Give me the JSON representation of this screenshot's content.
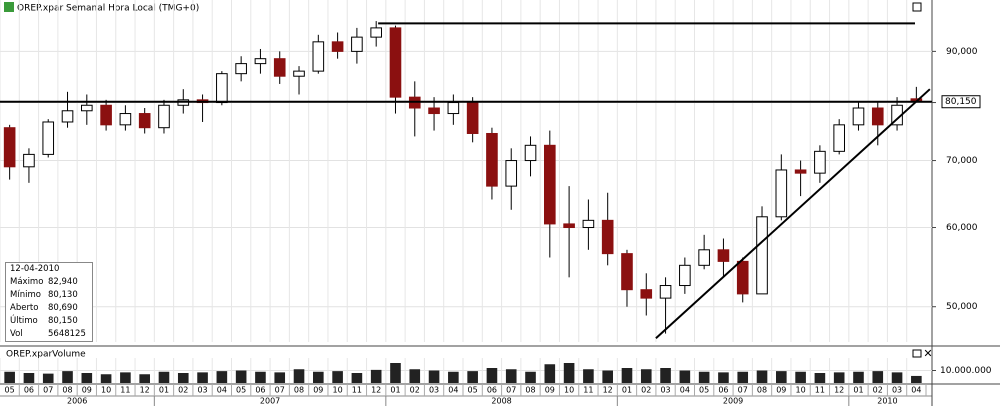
{
  "chart_data": {
    "type": "candlestick",
    "title": "OREP.xpar Semanal Hora Local (TMG+0)",
    "volume_title": "OREP.xparVolume",
    "log_scale": true,
    "grid": true,
    "up_color": "#ffffff",
    "down_color": "#8b1010",
    "categories": [
      "05",
      "06",
      "07",
      "08",
      "09",
      "10",
      "11",
      "12",
      "01",
      "02",
      "03",
      "04",
      "05",
      "06",
      "07",
      "08",
      "09",
      "10",
      "11",
      "12",
      "01",
      "02",
      "03",
      "04",
      "05",
      "06",
      "07",
      "08",
      "09",
      "10",
      "11",
      "12",
      "01",
      "02",
      "03",
      "04",
      "05",
      "06",
      "07",
      "08",
      "09",
      "10",
      "11",
      "12",
      "01",
      "02",
      "03",
      "04"
    ],
    "years": [
      "2006",
      "2007",
      "2008",
      "2009",
      "2010"
    ],
    "open": [
      75500,
      69000,
      71000,
      76500,
      78500,
      79500,
      76000,
      78000,
      75500,
      79500,
      80500,
      80000,
      85500,
      87500,
      88500,
      85000,
      86000,
      92000,
      90000,
      93000,
      95000,
      81000,
      79000,
      78000,
      80000,
      74500,
      66000,
      70000,
      72500,
      60500,
      60000,
      61000,
      56500,
      52000,
      51000,
      52500,
      55000,
      57000,
      55500,
      51500,
      61500,
      68500,
      68000,
      71500,
      76000,
      79000,
      76000,
      80690
    ],
    "high": [
      76000,
      72000,
      77000,
      82000,
      81500,
      80500,
      79500,
      79000,
      80500,
      82500,
      81500,
      86000,
      89000,
      90500,
      90000,
      87000,
      93500,
      94000,
      95000,
      96500,
      95500,
      84000,
      81000,
      81500,
      81000,
      75500,
      72000,
      74000,
      75000,
      66000,
      64000,
      65000,
      57000,
      54000,
      53500,
      56000,
      59000,
      58500,
      56000,
      63000,
      71000,
      70000,
      72500,
      77000,
      80000,
      80000,
      81000,
      82940
    ],
    "low": [
      67000,
      66500,
      70500,
      75500,
      76000,
      75000,
      75000,
      74500,
      74500,
      78000,
      76500,
      79500,
      84000,
      85500,
      83500,
      81500,
      85500,
      88500,
      87500,
      91000,
      78000,
      74000,
      75000,
      76000,
      73000,
      64000,
      62500,
      67500,
      56000,
      53500,
      57000,
      55000,
      50000,
      49000,
      47000,
      51500,
      54500,
      53500,
      50500,
      51500,
      61000,
      64500,
      66500,
      71000,
      75000,
      72500,
      75000,
      80130
    ],
    "close": [
      69000,
      71000,
      76500,
      78500,
      79500,
      76000,
      78000,
      75500,
      79500,
      80500,
      80000,
      85500,
      87500,
      88500,
      85000,
      86000,
      92000,
      90000,
      93000,
      95000,
      81000,
      79000,
      78000,
      80000,
      74500,
      66000,
      70000,
      72500,
      60500,
      60000,
      61000,
      56500,
      52000,
      51000,
      52500,
      55000,
      57000,
      55500,
      51500,
      61500,
      68500,
      68000,
      71500,
      76000,
      79000,
      76000,
      79500,
      80150
    ],
    "volume": [
      9000000,
      8000000,
      7500000,
      9500000,
      8000000,
      7000000,
      8500000,
      7000000,
      9000000,
      8000000,
      8500000,
      9500000,
      10000000,
      9000000,
      8500000,
      11000000,
      9000000,
      9500000,
      8000000,
      10500000,
      16000000,
      11000000,
      10000000,
      9000000,
      9500000,
      12000000,
      11000000,
      9000000,
      15000000,
      16000000,
      11000000,
      10000000,
      12000000,
      11000000,
      12000000,
      10000000,
      9000000,
      8500000,
      9000000,
      10000000,
      9500000,
      9000000,
      8000000,
      8500000,
      9000000,
      9500000,
      8500000,
      5648125
    ],
    "ylim": [
      46100,
      101300
    ],
    "yticks": [
      {
        "value": 50000,
        "label": "50,000"
      },
      {
        "value": 60000,
        "label": "60,000"
      },
      {
        "value": 70000,
        "label": "70,000"
      },
      {
        "value": 80000,
        "label": "80,000"
      },
      {
        "value": 90000,
        "label": "90,000"
      }
    ],
    "vol_ylim": [
      0,
      20000000
    ],
    "vol_yticks": [
      {
        "value": 10000000,
        "label": "10.000.000"
      }
    ],
    "last_price": {
      "value": 80150,
      "label": "80,150"
    },
    "resistance": 96000,
    "resistance_from": 19.6,
    "trendline": [
      [
        34.0,
        46500
      ],
      [
        48.2,
        82500
      ]
    ],
    "info": {
      "date": "12-04-2010",
      "rows": [
        [
          "Máximo",
          "82,940"
        ],
        [
          "Mínimo",
          "80,130"
        ],
        [
          "Aberto",
          "80,690"
        ],
        [
          "Último",
          "80,150"
        ],
        [
          "Vol",
          "5648125"
        ]
      ]
    }
  }
}
